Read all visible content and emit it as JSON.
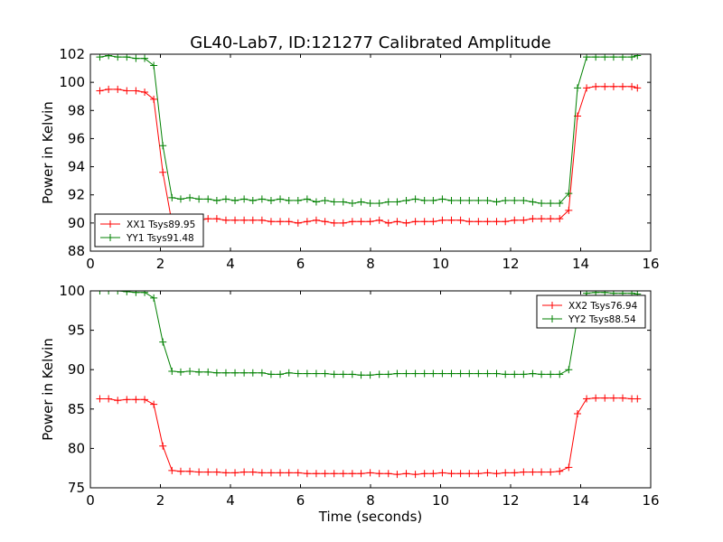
{
  "title": "GL40-Lab7, ID:121277 Calibrated Amplitude",
  "chart_data": [
    {
      "type": "line",
      "title": "GL40-Lab7, ID:121277 Calibrated Amplitude",
      "xlabel": "",
      "ylabel": "Power in Kelvin",
      "xlim": [
        0,
        16
      ],
      "ylim": [
        88,
        102
      ],
      "xticks": [
        0,
        2,
        4,
        6,
        8,
        10,
        12,
        14,
        16
      ],
      "yticks": [
        88,
        90,
        92,
        94,
        96,
        98,
        100,
        102
      ],
      "legend_position": "bottom-left",
      "x": [
        0.27,
        0.52,
        0.78,
        1.04,
        1.3,
        1.55,
        1.81,
        2.07,
        2.33,
        2.58,
        2.84,
        3.1,
        3.36,
        3.61,
        3.87,
        4.13,
        4.39,
        4.64,
        4.9,
        5.16,
        5.42,
        5.67,
        5.93,
        6.19,
        6.45,
        6.7,
        6.96,
        7.22,
        7.48,
        7.73,
        7.99,
        8.25,
        8.51,
        8.76,
        9.02,
        9.28,
        9.54,
        9.79,
        10.05,
        10.31,
        10.57,
        10.82,
        11.08,
        11.34,
        11.6,
        11.85,
        12.11,
        12.37,
        12.63,
        12.88,
        13.14,
        13.4,
        13.66,
        13.91,
        14.17,
        14.43,
        14.69,
        14.94,
        15.2,
        15.46,
        15.62
      ],
      "series": [
        {
          "name": "XX1 Tsys89.95",
          "color": "#ff0000",
          "values": [
            99.4,
            99.5,
            99.5,
            99.4,
            99.4,
            99.3,
            98.8,
            93.6,
            90.0,
            90.1,
            90.2,
            90.2,
            90.3,
            90.3,
            90.2,
            90.2,
            90.2,
            90.2,
            90.2,
            90.1,
            90.1,
            90.1,
            90.0,
            90.1,
            90.2,
            90.1,
            90.0,
            90.0,
            90.1,
            90.1,
            90.1,
            90.2,
            90.0,
            90.1,
            90.0,
            90.1,
            90.1,
            90.1,
            90.2,
            90.2,
            90.2,
            90.1,
            90.1,
            90.1,
            90.1,
            90.1,
            90.2,
            90.2,
            90.3,
            90.3,
            90.3,
            90.3,
            90.9,
            97.6,
            99.6,
            99.7,
            99.7,
            99.7,
            99.7,
            99.7,
            99.6
          ]
        },
        {
          "name": "YY1 Tsys91.48",
          "color": "#008000",
          "values": [
            101.8,
            101.9,
            101.8,
            101.8,
            101.7,
            101.7,
            101.2,
            95.5,
            91.8,
            91.7,
            91.8,
            91.7,
            91.7,
            91.6,
            91.7,
            91.6,
            91.7,
            91.6,
            91.7,
            91.6,
            91.7,
            91.6,
            91.6,
            91.7,
            91.5,
            91.6,
            91.5,
            91.5,
            91.4,
            91.5,
            91.4,
            91.4,
            91.5,
            91.5,
            91.6,
            91.7,
            91.6,
            91.6,
            91.7,
            91.6,
            91.6,
            91.6,
            91.6,
            91.6,
            91.5,
            91.6,
            91.6,
            91.6,
            91.5,
            91.4,
            91.4,
            91.4,
            92.1,
            99.6,
            101.8,
            101.8,
            101.8,
            101.8,
            101.8,
            101.8,
            101.9
          ]
        }
      ]
    },
    {
      "type": "line",
      "title": "",
      "xlabel": "Time (seconds)",
      "ylabel": "Power in Kelvin",
      "xlim": [
        0,
        16
      ],
      "ylim": [
        75,
        100
      ],
      "xticks": [
        0,
        2,
        4,
        6,
        8,
        10,
        12,
        14,
        16
      ],
      "yticks": [
        75,
        80,
        85,
        90,
        95,
        100
      ],
      "legend_position": "top-right",
      "x": [
        0.27,
        0.52,
        0.78,
        1.04,
        1.3,
        1.55,
        1.81,
        2.07,
        2.33,
        2.58,
        2.84,
        3.1,
        3.36,
        3.61,
        3.87,
        4.13,
        4.39,
        4.64,
        4.9,
        5.16,
        5.42,
        5.67,
        5.93,
        6.19,
        6.45,
        6.7,
        6.96,
        7.22,
        7.48,
        7.73,
        7.99,
        8.25,
        8.51,
        8.76,
        9.02,
        9.28,
        9.54,
        9.79,
        10.05,
        10.31,
        10.57,
        10.82,
        11.08,
        11.34,
        11.6,
        11.85,
        12.11,
        12.37,
        12.63,
        12.88,
        13.14,
        13.4,
        13.66,
        13.91,
        14.17,
        14.43,
        14.69,
        14.94,
        15.2,
        15.46,
        15.62
      ],
      "series": [
        {
          "name": "XX2 Tsys76.94",
          "color": "#ff0000",
          "values": [
            86.3,
            86.3,
            86.1,
            86.2,
            86.2,
            86.2,
            85.6,
            80.3,
            77.2,
            77.1,
            77.1,
            77.0,
            77.0,
            77.0,
            76.9,
            76.9,
            77.0,
            77.0,
            76.9,
            76.9,
            76.9,
            76.9,
            76.9,
            76.8,
            76.8,
            76.8,
            76.8,
            76.8,
            76.8,
            76.8,
            76.9,
            76.8,
            76.8,
            76.7,
            76.8,
            76.7,
            76.8,
            76.8,
            76.9,
            76.8,
            76.8,
            76.8,
            76.8,
            76.9,
            76.8,
            76.9,
            76.9,
            77.0,
            77.0,
            77.0,
            77.0,
            77.1,
            77.6,
            84.4,
            86.3,
            86.4,
            86.4,
            86.4,
            86.4,
            86.3,
            86.3
          ]
        },
        {
          "name": "YY2 Tsys88.54",
          "color": "#008000",
          "values": [
            100.0,
            100.0,
            100.0,
            99.9,
            99.8,
            99.8,
            99.1,
            93.5,
            89.8,
            89.7,
            89.8,
            89.7,
            89.7,
            89.6,
            89.6,
            89.6,
            89.6,
            89.6,
            89.6,
            89.4,
            89.4,
            89.6,
            89.5,
            89.5,
            89.5,
            89.5,
            89.4,
            89.4,
            89.4,
            89.3,
            89.3,
            89.4,
            89.4,
            89.5,
            89.5,
            89.5,
            89.5,
            89.5,
            89.5,
            89.5,
            89.5,
            89.5,
            89.5,
            89.5,
            89.5,
            89.4,
            89.4,
            89.4,
            89.5,
            89.4,
            89.4,
            89.4,
            90.0,
            96.6,
            99.7,
            99.8,
            99.8,
            99.7,
            99.7,
            99.7,
            99.6
          ]
        }
      ]
    }
  ]
}
